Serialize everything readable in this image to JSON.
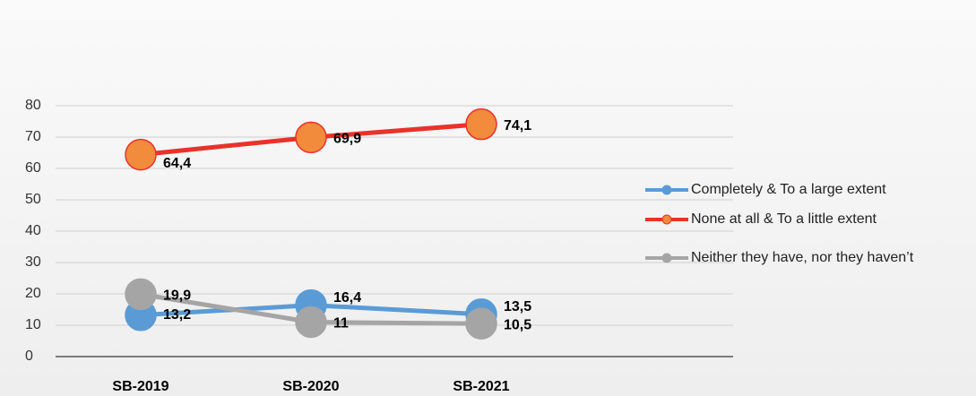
{
  "chart_data": {
    "type": "line",
    "categories": [
      "SB-2019",
      "SB-2020",
      "SB-2021"
    ],
    "series": [
      {
        "name": "Completely & To a large extent",
        "color": "#5b9bd5",
        "marker_color": "#5b9bd5",
        "values": [
          13.2,
          16.4,
          13.5
        ],
        "value_labels": [
          "13,2",
          "16,4",
          "13,5"
        ]
      },
      {
        "name": "None at all & To a little extent",
        "color": "#e8322a",
        "marker_color": "#f28b3c",
        "values": [
          64.4,
          69.9,
          74.1
        ],
        "value_labels": [
          "64,4",
          "69,9",
          "74,1"
        ]
      },
      {
        "name": "Neither they have, nor they haven’t",
        "color": "#a5a5a5",
        "marker_color": "#a5a5a5",
        "values": [
          19.9,
          11,
          10.5
        ],
        "value_labels": [
          "19,9",
          "11",
          "10,5"
        ]
      }
    ],
    "ylim": [
      0,
      80
    ],
    "yticks": [
      0,
      10,
      20,
      30,
      40,
      50,
      60,
      70,
      80
    ],
    "grid": true,
    "legend": "right"
  }
}
